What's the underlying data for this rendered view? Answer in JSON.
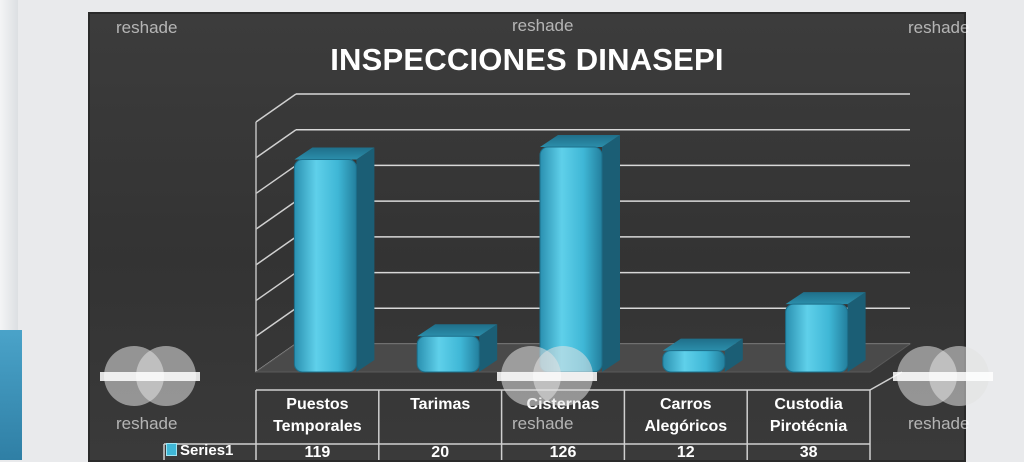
{
  "chart_data": {
    "type": "bar",
    "title": "INSPECCIONES DINASEPI",
    "categories": [
      [
        "Puestos",
        "Temporales"
      ],
      [
        "Tarimas"
      ],
      [
        "Cisternas"
      ],
      [
        "Carros",
        "Alegóricos"
      ],
      [
        "Custodia",
        "Pirotécnia"
      ]
    ],
    "series": [
      {
        "name": "Series1",
        "values": [
          119,
          20,
          126,
          12,
          38
        ]
      }
    ],
    "ylim": [
      0,
      140
    ],
    "grid": true,
    "legend": "data-table",
    "colors": {
      "bar": "#3fb7d6",
      "background": "#363636",
      "grid": "#d8d8d8"
    }
  },
  "watermark": {
    "text": "reshade"
  }
}
